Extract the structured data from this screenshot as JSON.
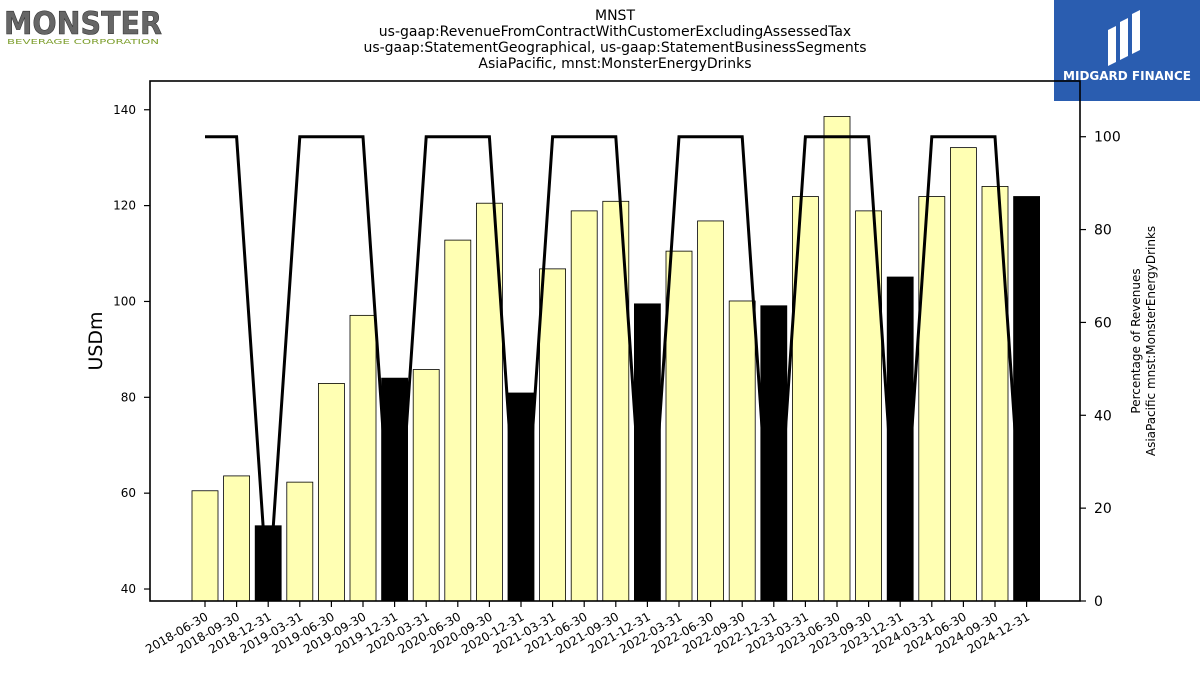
{
  "header": {
    "title_lines": [
      "MNST",
      "us-gaap:RevenueFromContractWithCustomerExcludingAssessedTax",
      "us-gaap:StatementGeographical, us-gaap:StatementBusinessSegments",
      "AsiaPacific, mnst:MonsterEnergyDrinks"
    ]
  },
  "logos": {
    "left": {
      "name": "MONSTER",
      "sub": "BEVERAGE CORPORATION"
    },
    "right": {
      "name": "MIDGARD FINANCE",
      "color": "#2a5db0"
    }
  },
  "chart_data": {
    "type": "bar",
    "categories": [
      "2018-06-30",
      "2018-09-30",
      "2018-12-31",
      "2019-03-31",
      "2019-06-30",
      "2019-09-30",
      "2019-12-31",
      "2020-03-31",
      "2020-06-30",
      "2020-09-30",
      "2020-12-31",
      "2021-03-31",
      "2021-06-30",
      "2021-09-30",
      "2021-12-31",
      "2022-03-31",
      "2022-06-30",
      "2022-09-30",
      "2022-12-31",
      "2023-03-31",
      "2023-06-30",
      "2023-09-30",
      "2023-12-31",
      "2024-03-31",
      "2024-06-30",
      "2024-09-30",
      "2024-12-31"
    ],
    "series": [
      {
        "axis": "left",
        "kind": "bar",
        "values": [
          60.5,
          63.6,
          53.2,
          62.3,
          82.9,
          97.1,
          84.0,
          85.8,
          112.8,
          120.5,
          80.9,
          106.8,
          118.9,
          120.9,
          99.5,
          110.5,
          116.8,
          100.1,
          99.1,
          121.9,
          138.6,
          118.9,
          105.1,
          121.9,
          132.1,
          124.0,
          121.9
        ],
        "highlight": [
          false,
          false,
          true,
          false,
          false,
          false,
          true,
          false,
          false,
          false,
          true,
          false,
          false,
          false,
          true,
          false,
          false,
          false,
          true,
          false,
          false,
          false,
          true,
          false,
          false,
          false,
          true
        ]
      },
      {
        "axis": "right",
        "kind": "line",
        "values": [
          100,
          100,
          0,
          100,
          100,
          100,
          0,
          100,
          100,
          100,
          0,
          100,
          100,
          100,
          0,
          100,
          100,
          100,
          0,
          100,
          100,
          100,
          0,
          100,
          100,
          100,
          0
        ]
      }
    ],
    "ylabel": "USDm",
    "y2label_lines": [
      "Percentage of Revenues",
      "AsiaPacific mnst:MonsterEnergyDrinks"
    ],
    "ylim": [
      37.5,
      146
    ],
    "y2lim": [
      0,
      112
    ],
    "yticks": [
      40,
      60,
      80,
      100,
      120,
      140
    ],
    "y2ticks": [
      0,
      20,
      40,
      60,
      80,
      100
    ],
    "colors": {
      "bar": "#ffffb3",
      "highlight_bar": "#000000",
      "line": "#000000"
    }
  }
}
